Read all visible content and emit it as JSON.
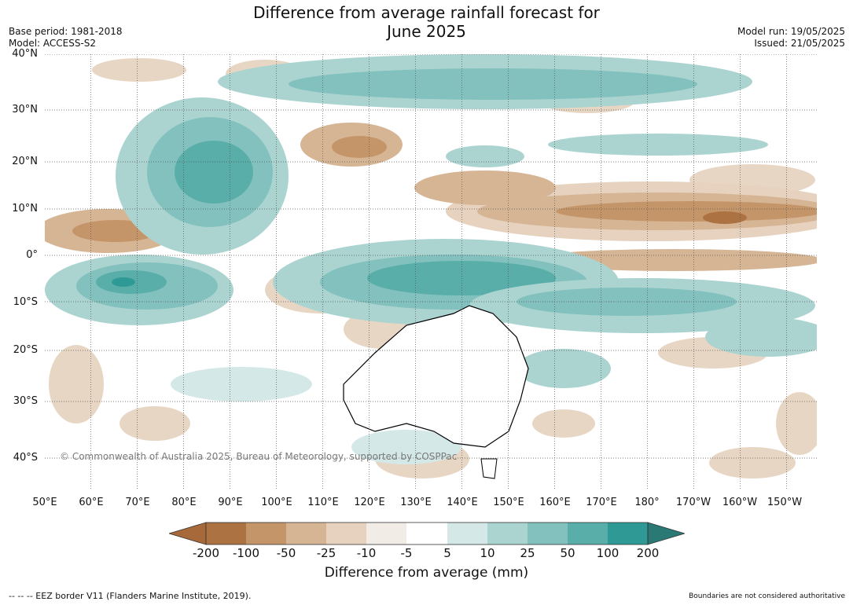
{
  "title_line1": "Difference from average rainfall forecast for",
  "title_line2": "June 2025",
  "base_period": "Base period: 1981-2018",
  "model": "Model: ACCESS-S2",
  "model_run": "Model run: 19/05/2025",
  "issued": "Issued: 21/05/2025",
  "copyright": "© Commonwealth of Australia 2025, Bureau of Meteorology, supported by COSPPac",
  "lat_labels": [
    "40°N",
    "30°N",
    "20°N",
    "10°N",
    "0°",
    "10°S",
    "20°S",
    "30°S",
    "40°S"
  ],
  "lon_labels": [
    "50°E",
    "60°E",
    "70°E",
    "80°E",
    "90°E",
    "100°E",
    "110°E",
    "120°E",
    "130°E",
    "140°E",
    "150°E",
    "160°E",
    "170°E",
    "180°",
    "170°W",
    "160°W",
    "150°W"
  ],
  "colorbar": {
    "ticks": [
      "-200",
      "-100",
      "-50",
      "-25",
      "-10",
      "-5",
      "5",
      "10",
      "25",
      "50",
      "100",
      "200"
    ],
    "colors": [
      "#a8693a",
      "#ad7242",
      "#c5956a",
      "#d6b595",
      "#e6d2be",
      "#f2ece6",
      "#ffffff",
      "#d4e9e7",
      "#abd4d1",
      "#82c1bd",
      "#5aaeaa",
      "#2f9a95",
      "#2a7974"
    ],
    "label": "Difference from average (mm)"
  },
  "footer_left": "--  --  -- EEZ border V11 (Flanders Marine Institute, 2019).",
  "footer_right": "Boundaries are not considered authoritative"
}
